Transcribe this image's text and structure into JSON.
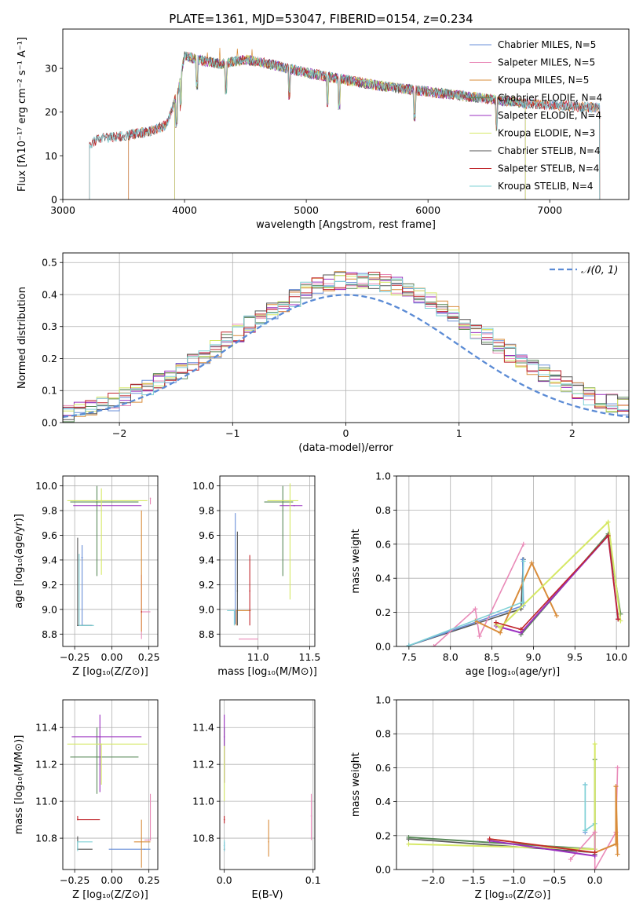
{
  "colors": [
    "#6a8fd8",
    "#e98ab8",
    "#d98c3a",
    "#5a8a5a",
    "#9b30c0",
    "#d6e866",
    "#555555",
    "#c0262c",
    "#7fd1d6"
  ],
  "chart_data": [
    {
      "id": "spectrum",
      "type": "line",
      "title": "PLATE=1361, MJD=53047, FIBERID=0154, z=0.234",
      "xlabel": "wavelength [Angstrom, rest frame]",
      "ylabel": "Flux [fλ10⁻¹⁷ erg cm⁻² s⁻¹ A⁻¹]",
      "xlim": [
        3000,
        7650
      ],
      "ylim": [
        0,
        39
      ],
      "xticks": [
        3000,
        4000,
        5000,
        6000,
        7000
      ],
      "yticks": [
        0,
        10,
        20,
        30
      ],
      "grid": false,
      "legend_position": "top-right",
      "series": [
        {
          "name": "Chabrier MILES, N_SSP=5",
          "x_start": 3540,
          "x_end": 7410
        },
        {
          "name": "Salpeter MILES, N_SSP=5",
          "x_start": 3540,
          "x_end": 7410
        },
        {
          "name": "Kroupa MILES, N_SSP=5",
          "x_start": 3540,
          "x_end": 7410
        },
        {
          "name": "Chabrier ELODIE, N_SSP=4",
          "x_start": 3920,
          "x_end": 6800
        },
        {
          "name": "Salpeter ELODIE, N_SSP=4",
          "x_start": 3920,
          "x_end": 6800
        },
        {
          "name": "Kroupa ELODIE, N_SSP=3",
          "x_start": 3920,
          "x_end": 6800
        },
        {
          "name": "Chabrier STELIB, N_SSP=4",
          "x_start": 3220,
          "x_end": 7410
        },
        {
          "name": "Salpeter STELIB, N_SSP=4",
          "x_start": 3220,
          "x_end": 7410
        },
        {
          "name": "Kroupa STELIB, N_SSP=4",
          "x_start": 3220,
          "x_end": 7410
        }
      ],
      "continuum": {
        "x": [
          3220,
          3300,
          3500,
          3700,
          3850,
          3950,
          4000,
          4100,
          4300,
          4500,
          4700,
          5000,
          5300,
          5600,
          5900,
          6200,
          6500,
          6800,
          7100,
          7400
        ],
        "y": [
          12.5,
          14,
          14.5,
          15.5,
          17,
          25,
          33,
          32,
          31,
          32,
          31,
          29,
          27.5,
          26,
          25,
          24,
          23,
          22,
          21.5,
          21
        ]
      }
    },
    {
      "id": "residuals",
      "type": "histogram",
      "xlabel": "(data-model)/error",
      "ylabel": "Normed distribution",
      "xlim": [
        -2.5,
        2.5
      ],
      "ylim": [
        0,
        0.53
      ],
      "xticks": [
        -2,
        -1,
        0,
        1,
        2
      ],
      "yticks": [
        0.0,
        0.1,
        0.2,
        0.3,
        0.4,
        0.5
      ],
      "grid": true,
      "legend_position": "top-right",
      "legend_label": "𝒩(0, 1)",
      "bin_width": 0.1
    },
    {
      "id": "age_vs_Z",
      "type": "errorbar",
      "xlabel": "Z [log₁₀(Z/Z⊙)]",
      "ylabel": "age  [log₁₀(age/yr)]",
      "xlim": [
        -0.33,
        0.31
      ],
      "ylim": [
        8.7,
        10.08
      ],
      "xticks": [
        -0.25,
        0.0,
        0.25
      ],
      "xticklabels": [
        "−0.25",
        "0.00",
        "0.25"
      ],
      "yticks": [
        8.8,
        9.0,
        9.2,
        9.4,
        9.6,
        9.8,
        10.0
      ],
      "grid": true,
      "points": [
        {
          "c": 0,
          "x": -0.2,
          "y": 9.42,
          "xe": [
            0.005,
            0.005
          ],
          "ye": [
            0.55,
            0.1
          ]
        },
        {
          "c": 0,
          "x": -0.14,
          "y": 8.87,
          "xe": [
            0.06,
            0.0
          ],
          "ye": [
            0.0,
            0.0
          ]
        },
        {
          "c": 1,
          "x": 0.2,
          "y": 8.98,
          "xe": [
            0.0,
            0.06
          ],
          "ye": [
            0.22,
            0.3
          ]
        },
        {
          "c": 1,
          "x": 0.26,
          "y": 9.9,
          "xe": [
            0.0,
            0.0
          ],
          "ye": [
            0.05,
            0.0
          ]
        },
        {
          "c": 2,
          "x": 0.2,
          "y": 8.98,
          "xe": [
            0.0,
            0.0
          ],
          "ye": [
            0.16,
            0.82
          ]
        },
        {
          "c": 3,
          "x": -0.1,
          "y": 9.87,
          "xe": [
            0.18,
            0.28
          ],
          "ye": [
            0.6,
            0.13
          ]
        },
        {
          "c": 4,
          "x": -0.08,
          "y": 9.84,
          "xe": [
            0.18,
            0.28
          ],
          "ye": [
            0.0,
            0.0
          ]
        },
        {
          "c": 5,
          "x": -0.07,
          "y": 9.88,
          "xe": [
            0.23,
            0.31
          ],
          "ye": [
            0.6,
            0.1
          ]
        },
        {
          "c": 6,
          "x": -0.23,
          "y": 8.87,
          "xe": [
            0.0,
            0.1
          ],
          "ye": [
            0.0,
            0.71
          ]
        },
        {
          "c": 7,
          "x": 0.2,
          "y": 8.98,
          "xe": [
            0.0,
            0.0
          ],
          "ye": [
            0.0,
            0.0
          ]
        },
        {
          "c": 8,
          "x": -0.22,
          "y": 8.87,
          "xe": [
            0.0,
            0.1
          ],
          "ye": [
            0.0,
            0.58
          ]
        }
      ]
    },
    {
      "id": "age_vs_mass",
      "type": "errorbar",
      "xlabel": "mass [log₁₀(M/M⊙)]",
      "ylabel": "",
      "xlim": [
        10.63,
        11.55
      ],
      "ylim": [
        8.7,
        10.08
      ],
      "xticks": [
        10.5,
        11.0,
        11.5
      ],
      "yticks": [
        8.8,
        9.0,
        9.2,
        9.4,
        9.6,
        9.8,
        10.0
      ],
      "grid": true,
      "points": [
        {
          "c": 0,
          "x": 10.78,
          "y": 9.4,
          "xe": [
            0.0,
            0.0
          ],
          "ye": [
            0.52,
            0.38
          ]
        },
        {
          "c": 1,
          "x": 10.82,
          "y": 8.76,
          "xe": [
            0.0,
            0.18
          ],
          "ye": [
            0.0,
            0.0
          ]
        },
        {
          "c": 2,
          "x": 10.79,
          "y": 8.99,
          "xe": [
            0.0,
            0.14
          ],
          "ye": [
            0.12,
            0.0
          ]
        },
        {
          "c": 3,
          "x": 11.24,
          "y": 9.87,
          "xe": [
            0.18,
            0.1
          ],
          "ye": [
            0.6,
            0.13
          ]
        },
        {
          "c": 4,
          "x": 11.35,
          "y": 9.84,
          "xe": [
            0.14,
            0.08
          ],
          "ye": [
            0.0,
            0.0
          ]
        },
        {
          "c": 5,
          "x": 11.31,
          "y": 9.88,
          "xe": [
            0.22,
            0.08
          ],
          "ye": [
            0.8,
            0.14
          ]
        },
        {
          "c": 6,
          "x": 10.8,
          "y": 9.15,
          "xe": [
            0.0,
            0.0
          ],
          "ye": [
            0.28,
            0.48
          ]
        },
        {
          "c": 7,
          "x": 10.92,
          "y": 9.15,
          "xe": [
            0.0,
            0.0
          ],
          "ye": [
            0.28,
            0.29
          ]
        },
        {
          "c": 8,
          "x": 10.77,
          "y": 8.99,
          "xe": [
            0.07,
            0.0
          ],
          "ye": [
            0.12,
            0.0
          ]
        }
      ]
    },
    {
      "id": "weight_vs_age",
      "type": "line",
      "xlabel": "age  [log₁₀(age/yr)]",
      "ylabel": "mass weight",
      "xlim": [
        7.35,
        10.15
      ],
      "ylim": [
        0,
        1.0
      ],
      "xticks": [
        7.5,
        8.0,
        8.5,
        9.0,
        9.5,
        10.0
      ],
      "yticks": [
        0.0,
        0.2,
        0.4,
        0.6,
        0.8,
        1.0
      ],
      "grid": true,
      "series": [
        {
          "c": 6,
          "x": [
            7.5,
            8.85,
            8.88
          ],
          "y": [
            0.005,
            0.22,
            0.51
          ]
        },
        {
          "c": 0,
          "x": [
            7.5,
            8.88,
            8.87
          ],
          "y": [
            0.005,
            0.24,
            0.51
          ]
        },
        {
          "c": 1,
          "x": [
            7.8,
            8.3,
            8.35,
            8.88
          ],
          "y": [
            0.0,
            0.22,
            0.06,
            0.6
          ]
        },
        {
          "c": 2,
          "x": [
            8.3,
            8.6,
            8.98,
            9.28
          ],
          "y": [
            0.15,
            0.08,
            0.49,
            0.18
          ]
        },
        {
          "c": 3,
          "x": [
            8.85,
            9.9,
            10.05
          ],
          "y": [
            0.07,
            0.66,
            0.19
          ]
        },
        {
          "c": 4,
          "x": [
            8.55,
            8.85,
            9.9,
            10.02
          ],
          "y": [
            0.12,
            0.08,
            0.65,
            0.16
          ]
        },
        {
          "c": 5,
          "x": [
            8.55,
            8.6,
            9.9,
            10.05
          ],
          "y": [
            0.13,
            0.11,
            0.73,
            0.15
          ]
        },
        {
          "c": 7,
          "x": [
            8.55,
            8.85,
            9.9,
            10.02
          ],
          "y": [
            0.14,
            0.1,
            0.65,
            0.16
          ]
        },
        {
          "c": 8,
          "x": [
            7.5,
            8.87,
            8.88
          ],
          "y": [
            0.005,
            0.26,
            0.5
          ]
        }
      ]
    },
    {
      "id": "mass_vs_Z",
      "type": "errorbar",
      "xlabel": "Z [log₁₀(Z/Z⊙)]",
      "ylabel": "mass [log₁₀(M/M⊙)]",
      "xlim": [
        -0.33,
        0.31
      ],
      "ylim": [
        10.63,
        11.55
      ],
      "xticks": [
        -0.25,
        0.0,
        0.25
      ],
      "xticklabels": [
        "−0.25",
        "0.00",
        "0.25"
      ],
      "yticks": [
        10.8,
        11.0,
        11.2,
        11.4
      ],
      "grid": true,
      "points": [
        {
          "c": 0,
          "x": 0.22,
          "y": 10.74,
          "xe": [
            0.24,
            0.04
          ],
          "ye": [
            0.0,
            0.0
          ]
        },
        {
          "c": 1,
          "x": 0.26,
          "y": 10.79,
          "xe": [
            0.04,
            0.0
          ],
          "ye": [
            0.0,
            0.25
          ]
        },
        {
          "c": 2,
          "x": 0.2,
          "y": 10.78,
          "xe": [
            0.05,
            0.06
          ],
          "ye": [
            0.14,
            0.12
          ]
        },
        {
          "c": 3,
          "x": -0.1,
          "y": 11.24,
          "xe": [
            0.18,
            0.28
          ],
          "ye": [
            0.2,
            0.16
          ]
        },
        {
          "c": 4,
          "x": -0.08,
          "y": 11.35,
          "xe": [
            0.19,
            0.28
          ],
          "ye": [
            0.3,
            0.12
          ]
        },
        {
          "c": 5,
          "x": -0.07,
          "y": 11.31,
          "xe": [
            0.23,
            0.31
          ],
          "ye": [
            0.22,
            0.0
          ]
        },
        {
          "c": 6,
          "x": -0.23,
          "y": 10.74,
          "xe": [
            0.0,
            0.1
          ],
          "ye": [
            0.0,
            0.07
          ]
        },
        {
          "c": 7,
          "x": -0.23,
          "y": 10.9,
          "xe": [
            0.0,
            0.15
          ],
          "ye": [
            0.0,
            0.02
          ]
        },
        {
          "c": 8,
          "x": -0.23,
          "y": 10.78,
          "xe": [
            0.0,
            0.1
          ],
          "ye": [
            0.05,
            0.0
          ]
        }
      ]
    },
    {
      "id": "mass_vs_ebv",
      "type": "errorbar",
      "xlabel": "E(B-V)",
      "ylabel": "",
      "xlim": [
        -0.005,
        0.102
      ],
      "ylim": [
        10.63,
        11.55
      ],
      "xticks": [
        0.0,
        0.1
      ],
      "xticklabels": [
        "0.0",
        "0.1"
      ],
      "yticks": [
        10.8,
        11.0,
        11.2,
        11.4
      ],
      "grid": true,
      "points": [
        {
          "c": 0,
          "x": 0.0,
          "y": 10.76,
          "xe": [
            0.0,
            0.0
          ],
          "ye": [
            0.03,
            0.02
          ]
        },
        {
          "c": 1,
          "x": 0.098,
          "y": 10.92,
          "xe": [
            0.0,
            0.0
          ],
          "ye": [
            0.13,
            0.12
          ]
        },
        {
          "c": 2,
          "x": 0.05,
          "y": 10.78,
          "xe": [
            0.0,
            0.0
          ],
          "ye": [
            0.08,
            0.12
          ]
        },
        {
          "c": 3,
          "x": 0.0,
          "y": 11.2,
          "xe": [
            0.0,
            0.0
          ],
          "ye": [
            0.1,
            0.2
          ]
        },
        {
          "c": 4,
          "x": 0.0,
          "y": 11.35,
          "xe": [
            0.0,
            0.0
          ],
          "ye": [
            0.25,
            0.12
          ]
        },
        {
          "c": 5,
          "x": 0.0,
          "y": 11.2,
          "xe": [
            0.0,
            0.0
          ],
          "ye": [
            0.2,
            0.1
          ]
        },
        {
          "c": 6,
          "x": 0.0,
          "y": 10.74,
          "xe": [
            0.0,
            0.0
          ],
          "ye": [
            0.0,
            0.0
          ]
        },
        {
          "c": 7,
          "x": 0.0,
          "y": 10.9,
          "xe": [
            0.0,
            0.0
          ],
          "ye": [
            0.02,
            0.02
          ]
        },
        {
          "c": 8,
          "x": 0.0,
          "y": 10.76,
          "xe": [
            0.0,
            0.0
          ],
          "ye": [
            0.03,
            0.03
          ]
        }
      ]
    },
    {
      "id": "weight_vs_Z",
      "type": "line",
      "xlabel": "Z [log₁₀(Z/Z⊙)]",
      "ylabel": "mass weight",
      "xlim": [
        -2.45,
        0.42
      ],
      "ylim": [
        0,
        1.0
      ],
      "xticks": [
        -2.0,
        -1.5,
        -1.0,
        -0.5,
        0.0
      ],
      "xticklabels": [
        "−2.0",
        "−1.5",
        "−1.0",
        "−0.5",
        "0.0"
      ],
      "yticks": [
        0.0,
        0.2,
        0.4,
        0.6,
        0.8,
        1.0
      ],
      "grid": true,
      "series": [
        {
          "c": 6,
          "x": [
            -2.3,
            0.0,
            0.0
          ],
          "y": [
            0.18,
            0.1,
            0.09
          ]
        },
        {
          "c": 0,
          "x": [
            -0.12,
            -0.12
          ],
          "y": [
            0.22,
            0.5
          ]
        },
        {
          "c": 8,
          "x": [
            -0.12,
            -0.12,
            0.0,
            -0.12
          ],
          "y": [
            0.5,
            0.23,
            0.27,
            0.23
          ]
        },
        {
          "c": 3,
          "x": [
            -2.3,
            0.0,
            0.0
          ],
          "y": [
            0.19,
            0.12,
            0.65
          ]
        },
        {
          "c": 5,
          "x": [
            -2.3,
            0.0,
            0.0
          ],
          "y": [
            0.15,
            0.12,
            0.74
          ]
        },
        {
          "c": 1,
          "x": [
            -0.3,
            0.0,
            0.0,
            0.26,
            0.28
          ],
          "y": [
            0.06,
            0.22,
            0.0,
            0.22,
            0.6
          ]
        },
        {
          "c": 2,
          "x": [
            -1.3,
            0.0,
            0.26,
            0.26,
            0.28
          ],
          "y": [
            0.18,
            0.1,
            0.15,
            0.49,
            0.09
          ]
        },
        {
          "c": 4,
          "x": [
            -1.3,
            0.0
          ],
          "y": [
            0.17,
            0.08
          ]
        },
        {
          "c": 7,
          "x": [
            -1.3,
            0.0
          ],
          "y": [
            0.18,
            0.1
          ]
        }
      ]
    }
  ]
}
